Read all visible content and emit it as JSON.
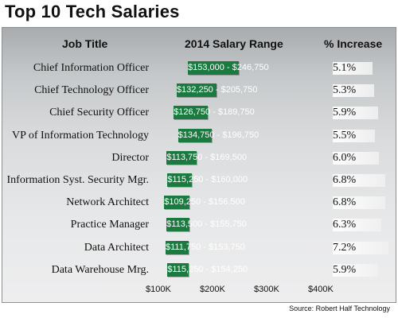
{
  "title": "Top 10 Tech Salaries",
  "source": "Source: Robert Half Technology",
  "colors": {
    "bar": "#1a7a3f",
    "pct_bar": "#ffffff"
  },
  "chart_data": {
    "type": "bar",
    "orientation": "horizontal-range",
    "headers": {
      "job": "Job Title",
      "range": "2014 Salary Range",
      "increase": "% Increase"
    },
    "x_ticks": [
      "$100K",
      "$200K",
      "$300K",
      "$400K"
    ],
    "xlim": [
      100000,
      400000
    ],
    "rows": [
      {
        "job": "Chief Information Officer",
        "low": 153000,
        "high": 246750,
        "range_label": "$153,000 - $246,750",
        "increase": 5.1,
        "increase_label": "5.1%"
      },
      {
        "job": "Chief Technology Officer",
        "low": 132250,
        "high": 205750,
        "range_label": "$132,250 - $205,750",
        "increase": 5.3,
        "increase_label": "5.3%"
      },
      {
        "job": "Chief Security Officer",
        "low": 126750,
        "high": 189750,
        "range_label": "$126,750 - $189,750",
        "increase": 5.9,
        "increase_label": "5.9%"
      },
      {
        "job": "VP of Information Technology",
        "low": 134750,
        "high": 196750,
        "range_label": "$134,750 - $196,750",
        "increase": 5.5,
        "increase_label": "5.5%"
      },
      {
        "job": "Director",
        "low": 113750,
        "high": 169500,
        "range_label": "$113,750 - $169,500",
        "increase": 6.0,
        "increase_label": "6.0%"
      },
      {
        "job": "Information Syst. Security Mgr.",
        "low": 115250,
        "high": 160000,
        "range_label": "$115,250 - $160,000",
        "increase": 6.8,
        "increase_label": "6.8%"
      },
      {
        "job": "Network Architect",
        "low": 109250,
        "high": 156500,
        "range_label": "$109,250 - $156,500",
        "increase": 6.8,
        "increase_label": "6.8%"
      },
      {
        "job": "Practice Manager",
        "low": 113500,
        "high": 155750,
        "range_label": "$113,500 - $155,750",
        "increase": 6.3,
        "increase_label": "6.3%"
      },
      {
        "job": "Data Architect",
        "low": 111750,
        "high": 153750,
        "range_label": "$111,750 - $153,750",
        "increase": 7.2,
        "increase_label": "7.2%"
      },
      {
        "job": "Data Warehouse Mrg.",
        "low": 115250,
        "high": 154250,
        "range_label": "$115,250 - $154,250",
        "increase": 5.9,
        "increase_label": "5.9%"
      }
    ]
  }
}
